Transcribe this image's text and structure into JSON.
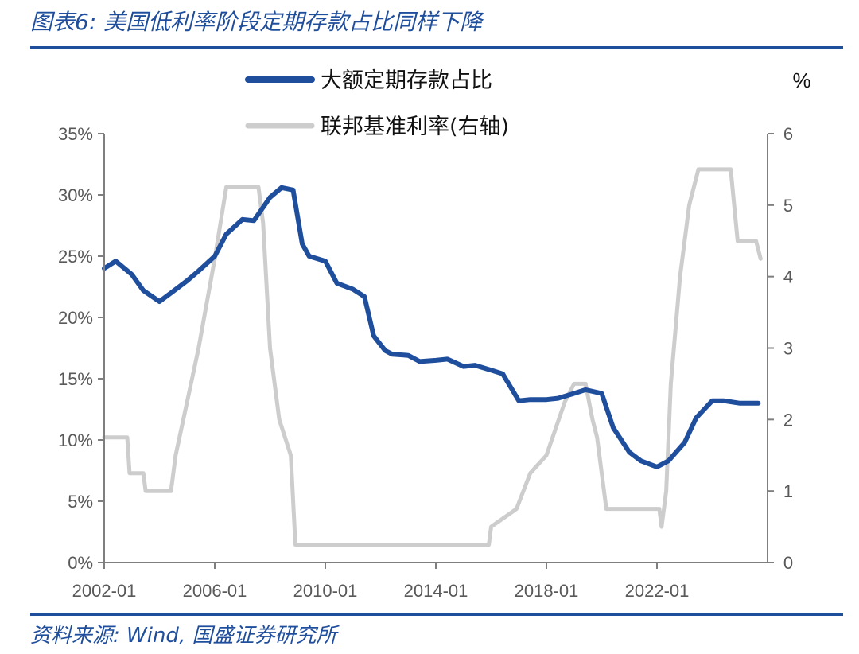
{
  "header": {
    "figure_title": "图表6:  美国低利率阶段定期存款占比同样下降"
  },
  "footer": {
    "source": "资料来源:  Wind,  国盛证券研究所"
  },
  "chart_data": {
    "type": "line",
    "title": "",
    "x_ticks": [
      "2002-01",
      "2006-01",
      "2010-01",
      "2014-01",
      "2018-01",
      "2022-01"
    ],
    "x_range": [
      "2002-01",
      "2026-01"
    ],
    "y_left": {
      "ticks": [
        "0%",
        "5%",
        "10%",
        "15%",
        "20%",
        "25%",
        "30%",
        "35%"
      ],
      "range": [
        0,
        35
      ]
    },
    "y_right": {
      "ticks": [
        "0",
        "1",
        "2",
        "3",
        "4",
        "5",
        "6"
      ],
      "range": [
        0,
        6
      ],
      "unit_label": "%"
    },
    "grid": false,
    "legend_position": "top-center",
    "series": [
      {
        "name": "大额定期存款占比",
        "axis": "left",
        "color": "#1f4e9c",
        "points": [
          [
            "2002-01",
            24.0
          ],
          [
            "2002-06",
            24.6
          ],
          [
            "2003-01",
            23.5
          ],
          [
            "2003-06",
            22.2
          ],
          [
            "2004-01",
            21.3
          ],
          [
            "2004-06",
            22.0
          ],
          [
            "2005-01",
            23.0
          ],
          [
            "2005-06",
            23.8
          ],
          [
            "2006-01",
            25.0
          ],
          [
            "2006-06",
            26.8
          ],
          [
            "2007-01",
            28.0
          ],
          [
            "2007-06",
            27.9
          ],
          [
            "2008-01",
            29.8
          ],
          [
            "2008-06",
            30.6
          ],
          [
            "2008-11",
            30.4
          ],
          [
            "2009-03",
            26.0
          ],
          [
            "2009-06",
            25.0
          ],
          [
            "2010-01",
            24.6
          ],
          [
            "2010-06",
            22.8
          ],
          [
            "2011-01",
            22.3
          ],
          [
            "2011-06",
            21.7
          ],
          [
            "2011-10",
            18.5
          ],
          [
            "2012-03",
            17.3
          ],
          [
            "2012-06",
            17.0
          ],
          [
            "2013-01",
            16.9
          ],
          [
            "2013-06",
            16.4
          ],
          [
            "2014-01",
            16.5
          ],
          [
            "2014-06",
            16.6
          ],
          [
            "2015-01",
            16.0
          ],
          [
            "2015-06",
            16.1
          ],
          [
            "2016-01",
            15.7
          ],
          [
            "2016-06",
            15.4
          ],
          [
            "2017-01",
            13.2
          ],
          [
            "2017-06",
            13.3
          ],
          [
            "2018-01",
            13.3
          ],
          [
            "2018-06",
            13.4
          ],
          [
            "2019-01",
            13.8
          ],
          [
            "2019-06",
            14.1
          ],
          [
            "2020-01",
            13.8
          ],
          [
            "2020-06",
            11.0
          ],
          [
            "2021-01",
            9.0
          ],
          [
            "2021-06",
            8.3
          ],
          [
            "2022-01",
            7.8
          ],
          [
            "2022-06",
            8.3
          ],
          [
            "2023-01",
            9.8
          ],
          [
            "2023-06",
            11.8
          ],
          [
            "2024-01",
            13.2
          ],
          [
            "2024-06",
            13.2
          ],
          [
            "2025-01",
            13.0
          ],
          [
            "2025-09",
            13.0
          ]
        ]
      },
      {
        "name": "联邦基准利率(右轴)",
        "axis": "right",
        "color": "#cdcdcd",
        "points": [
          [
            "2002-01",
            1.75
          ],
          [
            "2002-11",
            1.75
          ],
          [
            "2002-12",
            1.25
          ],
          [
            "2003-06",
            1.25
          ],
          [
            "2003-07",
            1.0
          ],
          [
            "2004-06",
            1.0
          ],
          [
            "2004-08",
            1.5
          ],
          [
            "2005-01",
            2.25
          ],
          [
            "2005-06",
            3.0
          ],
          [
            "2006-01",
            4.25
          ],
          [
            "2006-06",
            5.25
          ],
          [
            "2007-08",
            5.25
          ],
          [
            "2007-10",
            4.75
          ],
          [
            "2008-01",
            3.0
          ],
          [
            "2008-05",
            2.0
          ],
          [
            "2008-10",
            1.5
          ],
          [
            "2008-12",
            0.25
          ],
          [
            "2015-12",
            0.25
          ],
          [
            "2016-01",
            0.5
          ],
          [
            "2016-12",
            0.75
          ],
          [
            "2017-06",
            1.25
          ],
          [
            "2018-01",
            1.5
          ],
          [
            "2018-09",
            2.25
          ],
          [
            "2019-01",
            2.5
          ],
          [
            "2019-06",
            2.5
          ],
          [
            "2019-09",
            2.0
          ],
          [
            "2019-11",
            1.75
          ],
          [
            "2020-03",
            0.75
          ],
          [
            "2022-02",
            0.75
          ],
          [
            "2022-03",
            0.5
          ],
          [
            "2022-05",
            1.0
          ],
          [
            "2022-07",
            2.5
          ],
          [
            "2022-11",
            4.0
          ],
          [
            "2023-03",
            5.0
          ],
          [
            "2023-07",
            5.5
          ],
          [
            "2024-09",
            5.5
          ],
          [
            "2024-12",
            4.5
          ],
          [
            "2025-08",
            4.5
          ],
          [
            "2025-10",
            4.25
          ]
        ]
      }
    ]
  }
}
